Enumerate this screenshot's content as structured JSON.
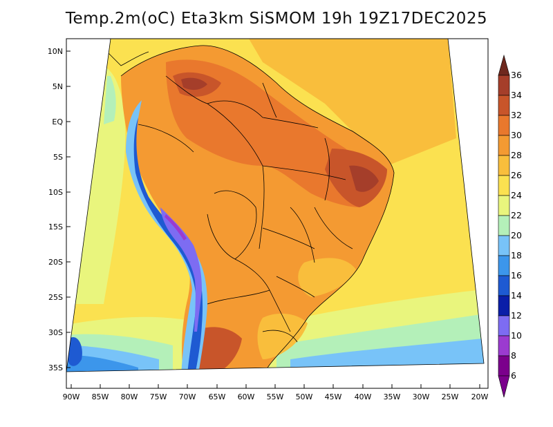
{
  "title": "Temp.2m(oC) Eta3km SiSMOM 19h 19Z17DEC2025",
  "colors": {
    "background": "#ffffff",
    "border": "#000000",
    "c6_8": "#7b008c",
    "c8_10": "#9b3bd0",
    "c10_12": "#7d6cf2",
    "c12_14": "#0a1ea8",
    "c14_16": "#1e5ad2",
    "c16_18": "#3c96eb",
    "c18_20": "#78c3f8",
    "c20_22": "#b4f0b9",
    "c22_24": "#e9f57d",
    "c24_26": "#fbe150",
    "c26_28": "#f9be3c",
    "c28_30": "#f49a32",
    "c30_32": "#e9782d",
    "c32_34": "#c8552a",
    "c34_36": "#a53e2a",
    "c36plus": "#6e281e"
  },
  "legend": {
    "labels": [
      "6",
      "8",
      "10",
      "12",
      "14",
      "16",
      "18",
      "20",
      "22",
      "24",
      "26",
      "28",
      "30",
      "32",
      "34",
      "36"
    ]
  },
  "axes": {
    "lat_labels": [
      "10N",
      "5N",
      "EQ",
      "5S",
      "10S",
      "15S",
      "20S",
      "25S",
      "30S",
      "35S"
    ],
    "lon_labels": [
      "90W",
      "85W",
      "80W",
      "75W",
      "70W",
      "65W",
      "60W",
      "55W",
      "50W",
      "45W",
      "40W",
      "35W",
      "30W",
      "25W",
      "20W"
    ]
  }
}
